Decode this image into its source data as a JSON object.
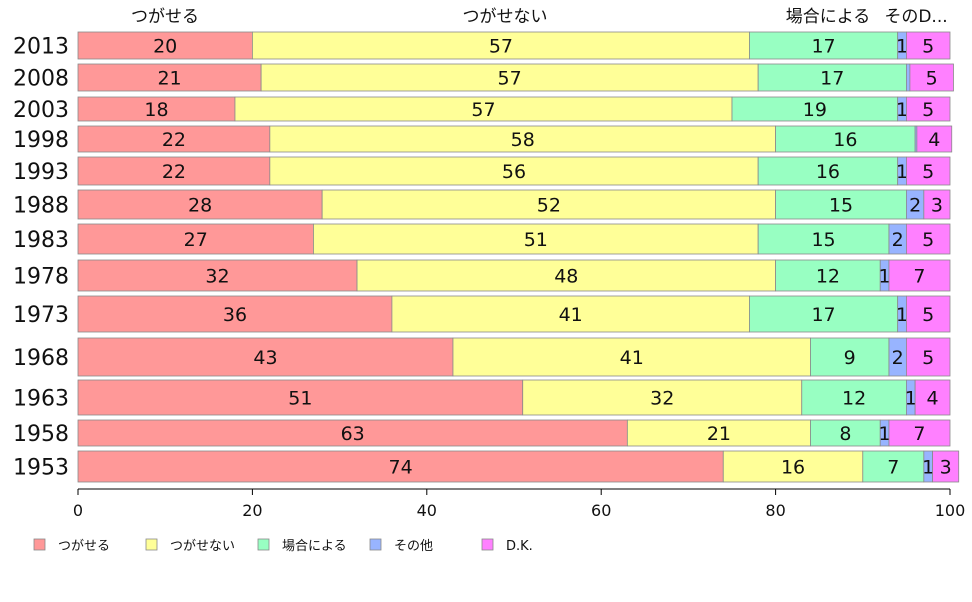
{
  "chart_data": {
    "type": "bar",
    "orientation": "horizontal",
    "stacked": true,
    "categories": [
      "2013",
      "2008",
      "2003",
      "1998",
      "1993",
      "1988",
      "1983",
      "1978",
      "1973",
      "1968",
      "1963",
      "1958",
      "1953"
    ],
    "series": [
      {
        "name": "つがせる",
        "color": "#ff9898",
        "values": [
          20,
          21,
          18,
          22,
          22,
          28,
          27,
          32,
          36,
          43,
          51,
          63,
          74
        ]
      },
      {
        "name": "つがせない",
        "color": "#ffff98",
        "values": [
          57,
          57,
          57,
          58,
          56,
          52,
          51,
          48,
          41,
          41,
          32,
          21,
          16
        ]
      },
      {
        "name": "場合による",
        "color": "#98ffc2",
        "values": [
          17,
          17,
          19,
          16,
          16,
          15,
          15,
          12,
          17,
          9,
          12,
          8,
          7
        ]
      },
      {
        "name": "その他",
        "color": "#98b4ff",
        "values": [
          1,
          0.4,
          1,
          0.2,
          1,
          2,
          2,
          1,
          1,
          2,
          1,
          1,
          1
        ]
      },
      {
        "name": "D.K.",
        "color": "#ff80ff",
        "values": [
          5,
          5,
          5,
          4,
          5,
          3,
          5,
          7,
          5,
          5,
          4,
          7,
          3
        ]
      }
    ],
    "value_labels": {
      "その他": [
        "1",
        "",
        "1",
        "",
        "1",
        "2",
        "2",
        "1",
        "1",
        "2",
        "1",
        "1",
        "1"
      ]
    },
    "column_headers": [
      "つがせる",
      "つがせない",
      "場合による",
      "そのD..."
    ],
    "x_ticks": [
      "0",
      "20",
      "40",
      "60",
      "80",
      "100"
    ],
    "xlim": [
      0,
      100
    ],
    "legend_position": "bottom",
    "grid": false
  }
}
